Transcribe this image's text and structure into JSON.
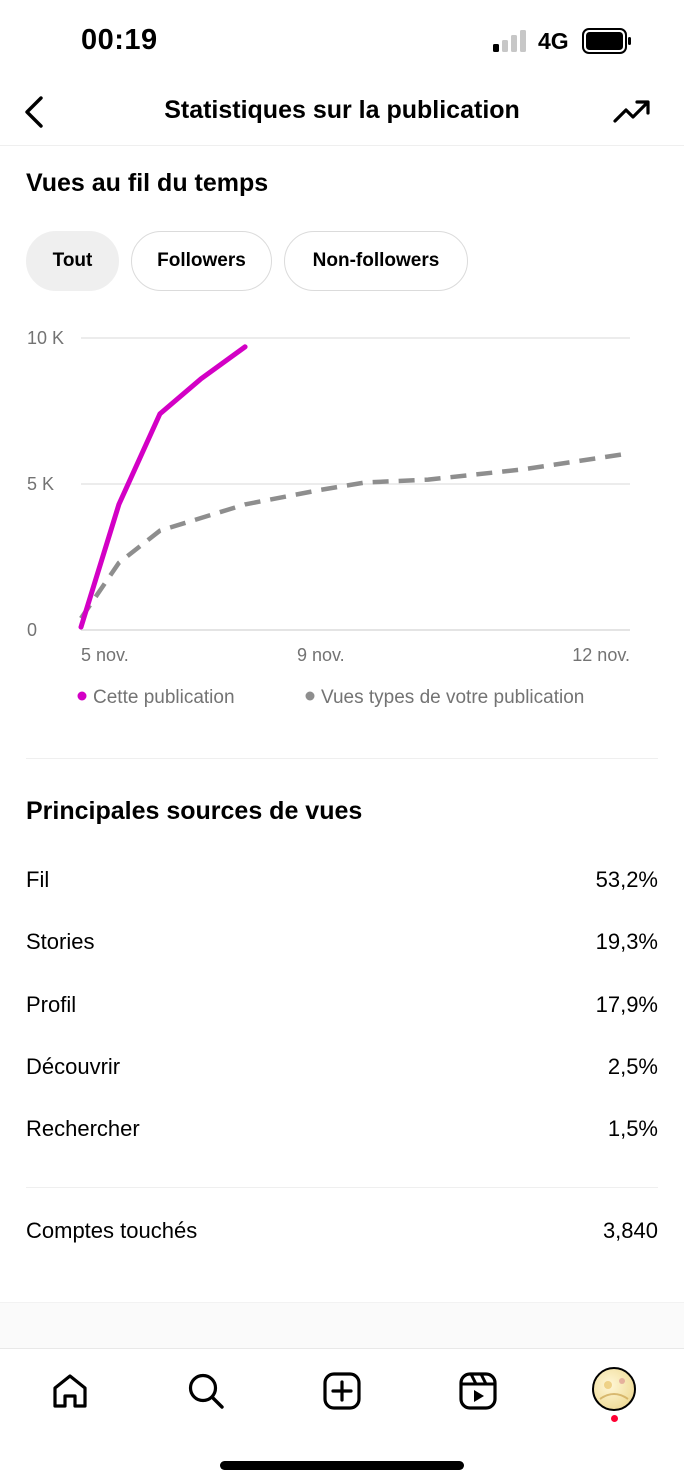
{
  "status_bar": {
    "time": "00:19",
    "network": "4G",
    "icons": [
      "signal-icon",
      "battery-icon"
    ]
  },
  "header": {
    "title": "Statistiques sur la publication",
    "icons": [
      "chevron-left-icon",
      "trending-up-icon"
    ]
  },
  "views_section": {
    "title": "Vues au fil du temps",
    "filters": [
      {
        "label": "Tout",
        "active": true
      },
      {
        "label": "Followers",
        "active": false
      },
      {
        "label": "Non-followers",
        "active": false
      }
    ]
  },
  "chart_data": {
    "type": "line",
    "y_ticks": [
      "10 K",
      "5 K",
      "0"
    ],
    "x_ticks": [
      "5 nov.",
      "9 nov.",
      "12 nov."
    ],
    "ylim": [
      0,
      10000
    ],
    "grid": true,
    "legend_position": "bottom",
    "series": [
      {
        "name": "Cette publication",
        "color": "#d300c5",
        "style": "solid",
        "x": [
          0,
          0.6,
          1.25,
          1.9,
          2.6
        ],
        "values": [
          100,
          4300,
          7400,
          8600,
          9700
        ]
      },
      {
        "name": "Vues types de votre publication",
        "color": "#8e8e8e",
        "style": "dashed",
        "x": [
          0,
          0.6,
          1.25,
          2.6,
          3.8,
          4.5,
          5.5,
          7.0,
          8.7
        ],
        "values": [
          400,
          2300,
          3400,
          4300,
          4800,
          5050,
          5150,
          5500,
          6050
        ]
      }
    ]
  },
  "sources_section": {
    "title": "Principales sources de vues",
    "rows": [
      {
        "label": "Fil",
        "value": "53,2%"
      },
      {
        "label": "Stories",
        "value": "19,3%"
      },
      {
        "label": "Profil",
        "value": "17,9%"
      },
      {
        "label": "Découvrir",
        "value": "2,5%"
      },
      {
        "label": "Rechercher",
        "value": "1,5%"
      }
    ]
  },
  "reach": {
    "label": "Comptes touchés",
    "value": "3,840"
  },
  "bottom_nav": {
    "items": [
      "home-icon",
      "search-icon",
      "create-icon",
      "reels-icon",
      "profile-avatar"
    ]
  }
}
